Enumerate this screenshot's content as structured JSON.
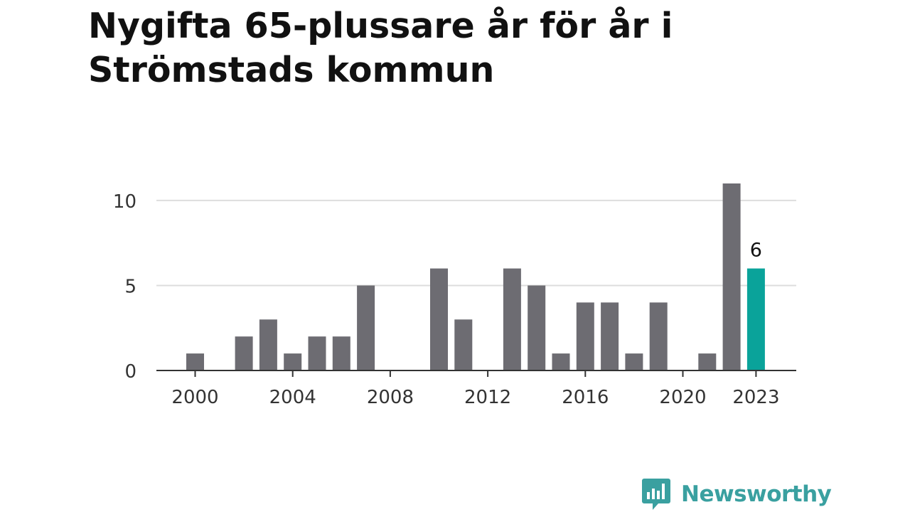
{
  "title": "Nygifta 65-plussare år för år i Strömstads kommun",
  "brand": {
    "name": "Newsworthy",
    "color": "#3aa0a0",
    "icon": "bar-chart-speech-bubble-icon"
  },
  "colors": {
    "bar": "#6d6c72",
    "highlight": "#0aa39a",
    "grid": "#dddddd",
    "axis": "#333333"
  },
  "chart_data": {
    "type": "bar",
    "title": "Nygifta 65-plussare år för år i Strömstads kommun",
    "xlabel": "",
    "ylabel": "",
    "categories": [
      "2000",
      "2001",
      "2002",
      "2003",
      "2004",
      "2005",
      "2006",
      "2007",
      "2008",
      "2009",
      "2010",
      "2011",
      "2012",
      "2013",
      "2014",
      "2015",
      "2016",
      "2017",
      "2018",
      "2019",
      "2020",
      "2021",
      "2022",
      "2023"
    ],
    "values": [
      1,
      0,
      2,
      3,
      1,
      2,
      2,
      5,
      0,
      0,
      6,
      3,
      0,
      6,
      5,
      1,
      4,
      4,
      1,
      4,
      0,
      1,
      11,
      6
    ],
    "highlight_category": "2023",
    "highlight_label": "6",
    "ylim": [
      0,
      11
    ],
    "y_ticks": [
      0,
      5,
      10
    ],
    "x_tick_labels": [
      "2000",
      "2004",
      "2008",
      "2012",
      "2016",
      "2020",
      "2023"
    ],
    "grid": true,
    "legend": "none"
  }
}
